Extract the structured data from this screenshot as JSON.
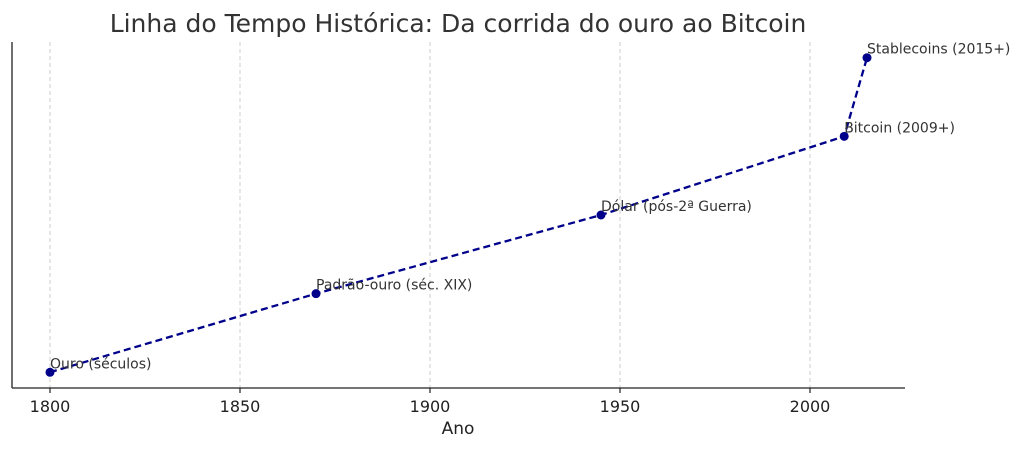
{
  "chart_data": {
    "type": "line",
    "title": "Linha do Tempo Histórica: Da corrida do ouro ao Bitcoin",
    "xlabel": "Ano",
    "ylabel": "",
    "xlim": [
      1790,
      2025
    ],
    "ylim": [
      0.8,
      5.2
    ],
    "xticks": [
      1800,
      1850,
      1900,
      1950,
      2000
    ],
    "grid": "vertical dashed",
    "line_color": "#00008b",
    "line_style": "dashed",
    "points": [
      {
        "x": 1800,
        "y": 1,
        "label": "Ouro (séculos)"
      },
      {
        "x": 1870,
        "y": 2,
        "label": "Padrão-ouro (séc. XIX)"
      },
      {
        "x": 1945,
        "y": 3,
        "label": "Dólar (pós-2ª Guerra)"
      },
      {
        "x": 2009,
        "y": 4,
        "label": "Bitcoin (2009+)"
      },
      {
        "x": 2015,
        "y": 5,
        "label": "Stablecoins (2015+)"
      }
    ]
  }
}
